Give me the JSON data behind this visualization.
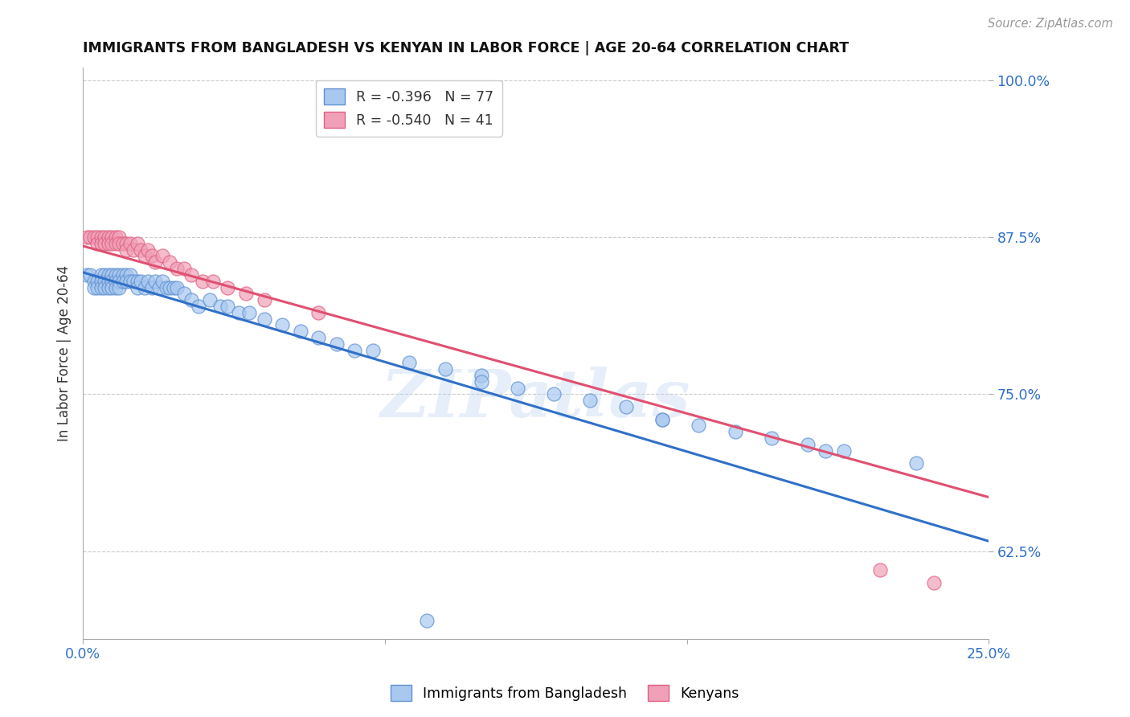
{
  "title": "IMMIGRANTS FROM BANGLADESH VS KENYAN IN LABOR FORCE | AGE 20-64 CORRELATION CHART",
  "source": "Source: ZipAtlas.com",
  "ylabel": "In Labor Force | Age 20-64",
  "xlim": [
    0.0,
    0.25
  ],
  "ylim": [
    0.555,
    1.01
  ],
  "yticks": [
    0.625,
    0.75,
    0.875,
    1.0
  ],
  "ytick_labels": [
    "62.5%",
    "75.0%",
    "87.5%",
    "100.0%"
  ],
  "xticks": [
    0.0,
    0.0833,
    0.1667,
    0.25
  ],
  "xtick_labels": [
    "0.0%",
    "",
    "",
    "25.0%"
  ],
  "blue_R": -0.396,
  "blue_N": 77,
  "pink_R": -0.54,
  "pink_N": 41,
  "blue_color": "#a8c8f0",
  "pink_color": "#f0a0b8",
  "blue_edge_color": "#6090d0",
  "pink_edge_color": "#e06080",
  "blue_line_color": "#3070c8",
  "pink_line_color": "#e05070",
  "legend_label_blue": "Immigrants from Bangladesh",
  "legend_label_pink": "Kenyans",
  "watermark": "ZIPatlas",
  "blue_scatter_x": [
    0.001,
    0.002,
    0.003,
    0.003,
    0.004,
    0.004,
    0.005,
    0.005,
    0.005,
    0.006,
    0.006,
    0.006,
    0.007,
    0.007,
    0.007,
    0.008,
    0.008,
    0.008,
    0.009,
    0.009,
    0.009,
    0.01,
    0.01,
    0.01,
    0.011,
    0.011,
    0.012,
    0.012,
    0.013,
    0.013,
    0.014,
    0.015,
    0.015,
    0.016,
    0.017,
    0.018,
    0.019,
    0.02,
    0.021,
    0.022,
    0.023,
    0.024,
    0.025,
    0.026,
    0.028,
    0.03,
    0.032,
    0.035,
    0.038,
    0.04,
    0.043,
    0.046,
    0.05,
    0.055,
    0.06,
    0.065,
    0.07,
    0.075,
    0.08,
    0.09,
    0.1,
    0.11,
    0.12,
    0.13,
    0.14,
    0.15,
    0.16,
    0.17,
    0.18,
    0.19,
    0.2,
    0.21,
    0.11,
    0.16,
    0.205,
    0.23,
    0.095
  ],
  "blue_scatter_y": [
    0.845,
    0.845,
    0.84,
    0.835,
    0.84,
    0.835,
    0.845,
    0.84,
    0.835,
    0.845,
    0.84,
    0.835,
    0.845,
    0.84,
    0.835,
    0.845,
    0.84,
    0.835,
    0.845,
    0.84,
    0.835,
    0.845,
    0.84,
    0.835,
    0.845,
    0.84,
    0.845,
    0.84,
    0.845,
    0.84,
    0.84,
    0.84,
    0.835,
    0.84,
    0.835,
    0.84,
    0.835,
    0.84,
    0.835,
    0.84,
    0.835,
    0.835,
    0.835,
    0.835,
    0.83,
    0.825,
    0.82,
    0.825,
    0.82,
    0.82,
    0.815,
    0.815,
    0.81,
    0.805,
    0.8,
    0.795,
    0.79,
    0.785,
    0.785,
    0.775,
    0.77,
    0.765,
    0.755,
    0.75,
    0.745,
    0.74,
    0.73,
    0.725,
    0.72,
    0.715,
    0.71,
    0.705,
    0.76,
    0.73,
    0.705,
    0.695,
    0.57
  ],
  "pink_scatter_x": [
    0.001,
    0.002,
    0.003,
    0.004,
    0.004,
    0.005,
    0.005,
    0.006,
    0.006,
    0.007,
    0.007,
    0.008,
    0.008,
    0.009,
    0.009,
    0.01,
    0.01,
    0.011,
    0.012,
    0.012,
    0.013,
    0.014,
    0.015,
    0.016,
    0.017,
    0.018,
    0.019,
    0.02,
    0.022,
    0.024,
    0.026,
    0.028,
    0.03,
    0.033,
    0.036,
    0.04,
    0.045,
    0.05,
    0.065,
    0.22,
    0.235
  ],
  "pink_scatter_y": [
    0.875,
    0.875,
    0.875,
    0.875,
    0.87,
    0.875,
    0.87,
    0.875,
    0.87,
    0.875,
    0.87,
    0.875,
    0.87,
    0.875,
    0.87,
    0.875,
    0.87,
    0.87,
    0.87,
    0.865,
    0.87,
    0.865,
    0.87,
    0.865,
    0.86,
    0.865,
    0.86,
    0.855,
    0.86,
    0.855,
    0.85,
    0.85,
    0.845,
    0.84,
    0.84,
    0.835,
    0.83,
    0.825,
    0.815,
    0.61,
    0.6
  ],
  "blue_line_x": [
    0.0,
    0.25
  ],
  "blue_line_y": [
    0.847,
    0.633
  ],
  "pink_line_x": [
    0.0,
    0.25
  ],
  "pink_line_y": [
    0.868,
    0.668
  ]
}
